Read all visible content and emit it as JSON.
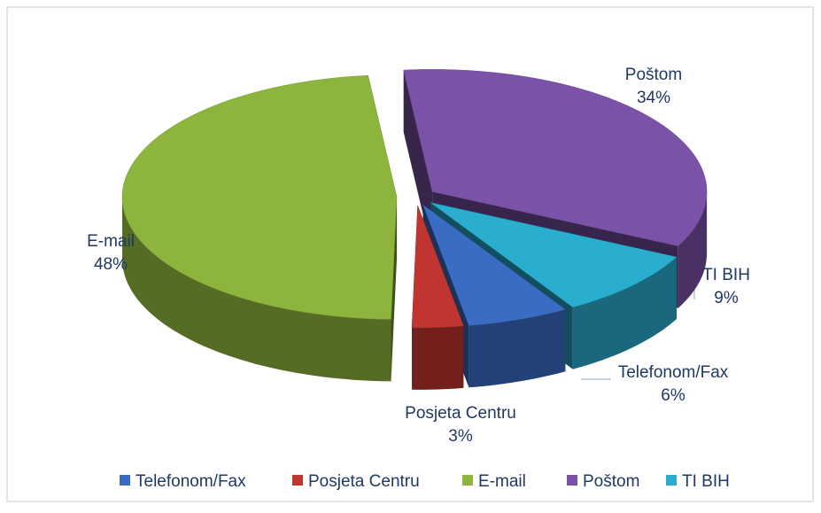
{
  "chart_data": {
    "type": "pie3d",
    "categories": [
      "Telefonom/Fax",
      "Posjeta Centru",
      "E-mail",
      "Poštom",
      "TI BIH"
    ],
    "values": [
      6,
      3,
      48,
      34,
      9
    ],
    "value_labels": [
      "6%",
      "3%",
      "48%",
      "34%",
      "9%"
    ],
    "colors": [
      "#3b6cc4",
      "#c03530",
      "#8db43c",
      "#7a52a8",
      "#2aaed0"
    ],
    "legend": "bottom"
  }
}
